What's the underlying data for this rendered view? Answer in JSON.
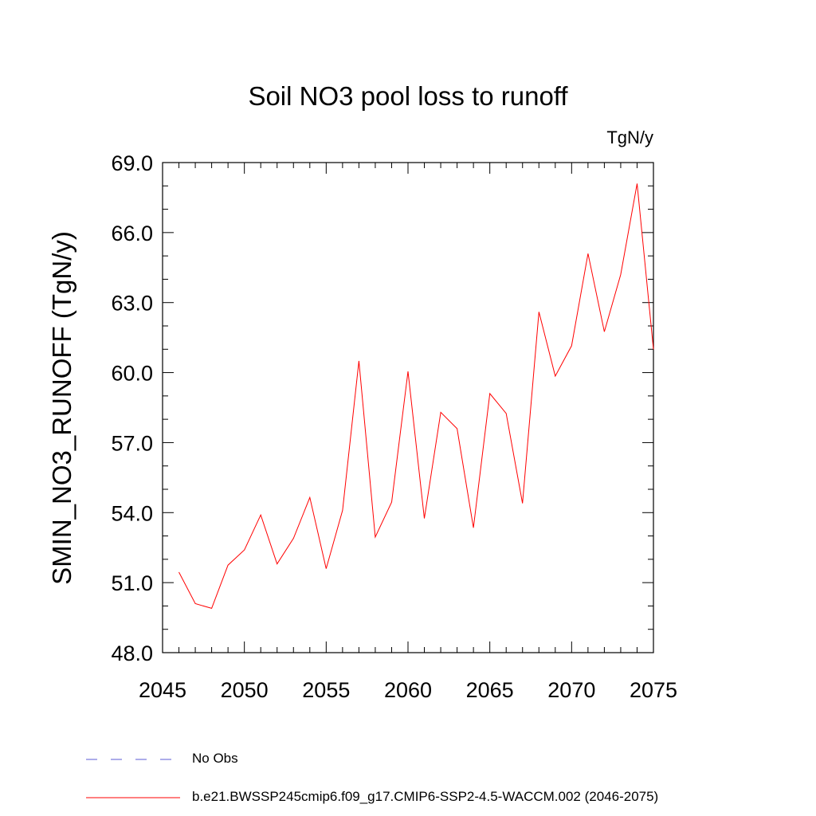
{
  "chart_data": {
    "type": "line",
    "title": "Soil NO3 pool loss to runoff",
    "units_label": "TgN/y",
    "xlabel": "",
    "ylabel": "SMIN_NO3_RUNOFF  (TgN/y)",
    "xlim": [
      2045,
      2075
    ],
    "ylim": [
      48.0,
      69.0
    ],
    "x_ticks": [
      2045,
      2050,
      2055,
      2060,
      2065,
      2070,
      2075
    ],
    "x_tick_labels": [
      "2045",
      "2050",
      "2055",
      "2060",
      "2065",
      "2070",
      "2075"
    ],
    "y_ticks": [
      48.0,
      51.0,
      54.0,
      57.0,
      60.0,
      63.0,
      66.0,
      69.0
    ],
    "y_tick_labels": [
      "48.0",
      "51.0",
      "54.0",
      "57.0",
      "60.0",
      "63.0",
      "66.0",
      "69.0"
    ],
    "grid": false,
    "legend_position": "bottom",
    "x": [
      2046,
      2047,
      2048,
      2049,
      2050,
      2051,
      2052,
      2053,
      2054,
      2055,
      2056,
      2057,
      2058,
      2059,
      2060,
      2061,
      2062,
      2063,
      2064,
      2065,
      2066,
      2067,
      2068,
      2069,
      2070,
      2071,
      2072,
      2073,
      2074,
      2075
    ],
    "series": [
      {
        "name": "b.e21.BWSSP245cmip6.f09_g17.CMIP6-SSP2-4.5-WACCM.002 (2046-2075)",
        "color": "#ff0000",
        "style": "solid",
        "values": [
          51.45,
          50.1,
          49.9,
          51.75,
          52.4,
          53.9,
          51.8,
          52.9,
          54.65,
          51.6,
          54.1,
          60.5,
          52.95,
          54.45,
          60.05,
          53.75,
          58.3,
          57.6,
          53.35,
          59.1,
          58.25,
          54.4,
          62.6,
          59.85,
          61.15,
          65.1,
          61.75,
          64.2,
          68.1,
          61.0
        ]
      }
    ],
    "legend": [
      {
        "label": "No Obs",
        "color": "#5b5bd6",
        "style": "dashed"
      },
      {
        "label": "b.e21.BWSSP245cmip6.f09_g17.CMIP6-SSP2-4.5-WACCM.002 (2046-2075)",
        "color": "#ff0000",
        "style": "solid"
      }
    ]
  }
}
